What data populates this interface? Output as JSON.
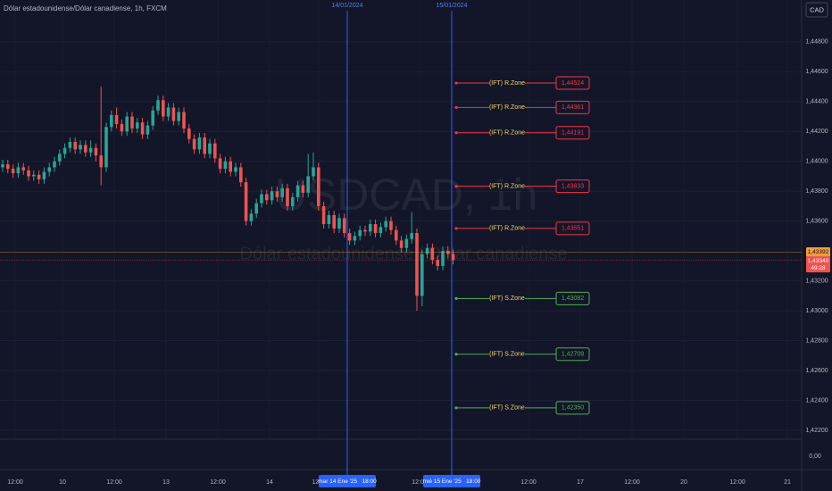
{
  "chart_data": {
    "type": "candlestick",
    "title": "Dólar estadounidense/Dólar canadiense, 1h, FXCM",
    "watermark": "USDCAD, 1h",
    "watermark_subtitle": "Dólar estadounidense / Dólar canadiense",
    "currency_button": "CAD",
    "up_color": "#26a69a",
    "down_color": "#ef5350",
    "ylim": [
      1.4214,
      1.4508
    ],
    "yticks": [
      {
        "value": 1.448,
        "label": "1,44800"
      },
      {
        "value": 1.446,
        "label": "1,44600"
      },
      {
        "value": 1.444,
        "label": "1,44400"
      },
      {
        "value": 1.442,
        "label": "1,44200"
      },
      {
        "value": 1.44,
        "label": "1,44000"
      },
      {
        "value": 1.438,
        "label": "1,43800"
      },
      {
        "value": 1.436,
        "label": "1,43600"
      },
      {
        "value": 1.432,
        "label": "1,43200"
      },
      {
        "value": 1.43,
        "label": "1,43000"
      },
      {
        "value": 1.428,
        "label": "1,42800"
      },
      {
        "value": 1.426,
        "label": "1,42600"
      },
      {
        "value": 1.424,
        "label": "1,42400"
      },
      {
        "value": 1.422,
        "label": "1,42200"
      }
    ],
    "lower_pane_tick": {
      "value": 0,
      "label": "0,00"
    },
    "x_axis_labels": [
      "12:00",
      "10",
      "12:00",
      "13",
      "12:00",
      "14",
      "12:00",
      "12:00",
      "12:00",
      "17",
      "12:00",
      "20",
      "12:00",
      "21"
    ],
    "markers": [
      {
        "top_label": "14/01/2024",
        "axis_label": "mar 14 Ene '25   18:00"
      },
      {
        "top_label": "15/01/2024",
        "axis_label": "mié 15 Ene '25   18:00"
      }
    ],
    "open": [
      1.4396,
      1.4398,
      1.4395,
      1.4392,
      1.4396,
      1.4394,
      1.439,
      1.4391,
      1.4388,
      1.4393,
      1.4396,
      1.44,
      1.4405,
      1.4409,
      1.4413,
      1.4408,
      1.4411,
      1.4406,
      1.4409,
      1.4404,
      1.4396,
      1.4423,
      1.4431,
      1.4425,
      1.442,
      1.443,
      1.4422,
      1.4426,
      1.4418,
      1.4424,
      1.4434,
      1.4441,
      1.443,
      1.4436,
      1.4427,
      1.4433,
      1.4422,
      1.4415,
      1.4408,
      1.4416,
      1.4405,
      1.4412,
      1.4402,
      1.4395,
      1.44,
      1.4393,
      1.4396,
      1.4386,
      1.436,
      1.4365,
      1.4372,
      1.4378,
      1.4374,
      1.438,
      1.4376,
      1.4382,
      1.437,
      1.4376,
      1.4384,
      1.4379,
      1.439,
      1.4396,
      1.437,
      1.4358,
      1.4364,
      1.4355,
      1.4362,
      1.4352,
      1.4347,
      1.435,
      1.4354,
      1.4353,
      1.4358,
      1.4352,
      1.4356,
      1.436,
      1.4354,
      1.4347,
      1.4342,
      1.4348,
      1.4352,
      1.431,
      1.4338,
      1.4342,
      1.4334,
      1.433,
      1.434,
      1.4338
    ],
    "high": [
      1.4401,
      1.4401,
      1.4398,
      1.4399,
      1.4399,
      1.4397,
      1.4394,
      1.4394,
      1.4396,
      1.4399,
      1.4403,
      1.4408,
      1.4412,
      1.4416,
      1.4416,
      1.4414,
      1.4414,
      1.4414,
      1.4412,
      1.445,
      1.4426,
      1.4434,
      1.4436,
      1.4428,
      1.4433,
      1.4433,
      1.4429,
      1.4429,
      1.4427,
      1.4437,
      1.4444,
      1.4444,
      1.4439,
      1.4439,
      1.4436,
      1.4436,
      1.4425,
      1.4418,
      1.4419,
      1.4419,
      1.4415,
      1.4415,
      1.4405,
      1.4403,
      1.4403,
      1.4399,
      1.4399,
      1.4389,
      1.4368,
      1.4375,
      1.4381,
      1.4381,
      1.4383,
      1.4383,
      1.4385,
      1.4385,
      1.4379,
      1.4387,
      1.4387,
      1.4405,
      1.4406,
      1.4399,
      1.4373,
      1.4367,
      1.4367,
      1.4365,
      1.4365,
      1.4355,
      1.4353,
      1.4357,
      1.4357,
      1.4361,
      1.4361,
      1.4359,
      1.4363,
      1.4363,
      1.4357,
      1.435,
      1.4351,
      1.4366,
      1.4355,
      1.4341,
      1.4345,
      1.4345,
      1.4337,
      1.4343,
      1.4343,
      1.4341
    ],
    "low": [
      1.4393,
      1.4392,
      1.4389,
      1.4389,
      1.4391,
      1.4387,
      1.4387,
      1.4385,
      1.4385,
      1.439,
      1.4393,
      1.4397,
      1.4402,
      1.4406,
      1.4405,
      1.4405,
      1.4403,
      1.4403,
      1.44,
      1.4384,
      1.4393,
      1.442,
      1.4422,
      1.4417,
      1.4417,
      1.4419,
      1.4419,
      1.4415,
      1.4415,
      1.4421,
      1.4431,
      1.4427,
      1.4427,
      1.4424,
      1.4424,
      1.4419,
      1.4412,
      1.4405,
      1.4405,
      1.4402,
      1.4402,
      1.4399,
      1.4392,
      1.4392,
      1.439,
      1.439,
      1.4383,
      1.4357,
      1.4357,
      1.4362,
      1.4369,
      1.4371,
      1.4371,
      1.4373,
      1.4373,
      1.4367,
      1.4367,
      1.4373,
      1.4376,
      1.4376,
      1.4387,
      1.4367,
      1.4355,
      1.4355,
      1.4352,
      1.4352,
      1.4349,
      1.4344,
      1.4344,
      1.4347,
      1.435,
      1.435,
      1.4349,
      1.4349,
      1.4353,
      1.4351,
      1.4344,
      1.4339,
      1.4339,
      1.4345,
      1.43,
      1.4303,
      1.4335,
      1.4331,
      1.4327,
      1.4327,
      1.4335,
      1.4331
    ],
    "close": [
      1.4398,
      1.4395,
      1.4392,
      1.4396,
      1.4394,
      1.439,
      1.4391,
      1.4388,
      1.4393,
      1.4396,
      1.44,
      1.4405,
      1.4409,
      1.4413,
      1.4408,
      1.4411,
      1.4406,
      1.4409,
      1.4404,
      1.4396,
      1.4423,
      1.4431,
      1.4425,
      1.442,
      1.443,
      1.4422,
      1.4426,
      1.4418,
      1.4424,
      1.4434,
      1.4441,
      1.443,
      1.4436,
      1.4427,
      1.4433,
      1.4422,
      1.4415,
      1.4408,
      1.4416,
      1.4405,
      1.4412,
      1.4402,
      1.4395,
      1.44,
      1.4393,
      1.4396,
      1.4386,
      1.436,
      1.4365,
      1.4372,
      1.4378,
      1.4374,
      1.438,
      1.4376,
      1.4382,
      1.437,
      1.4376,
      1.4384,
      1.4379,
      1.439,
      1.4396,
      1.437,
      1.4358,
      1.4364,
      1.4355,
      1.4362,
      1.4352,
      1.4347,
      1.435,
      1.4354,
      1.4353,
      1.4358,
      1.4352,
      1.4356,
      1.436,
      1.4354,
      1.4347,
      1.4342,
      1.4348,
      1.4352,
      1.431,
      1.4338,
      1.4342,
      1.4334,
      1.433,
      1.434,
      1.4338,
      1.4334
    ],
    "zones": [
      {
        "name": "(IFT) R.Zone",
        "value": 1.44524,
        "value_label": "1,44524",
        "color": "#f23645"
      },
      {
        "name": "(IFT) R.Zone",
        "value": 1.44361,
        "value_label": "1,44361",
        "color": "#f23645"
      },
      {
        "name": "(IFT) R.Zone",
        "value": 1.44191,
        "value_label": "1,44191",
        "color": "#f23645"
      },
      {
        "name": "(IFT) R.Zone",
        "value": 1.43833,
        "value_label": "1,43833",
        "color": "#f23645"
      },
      {
        "name": "(IFT) R.Zone",
        "value": 1.43551,
        "value_label": "1,43551",
        "color": "#f23645"
      },
      {
        "name": "(IFT) S.Zone",
        "value": 1.43082,
        "value_label": "1,43082",
        "color": "#4caf50"
      },
      {
        "name": "(IFT) S.Zone",
        "value": 1.42709,
        "value_label": "1,42709",
        "color": "#4caf50"
      },
      {
        "name": "(IFT) S.Zone",
        "value": 1.4235,
        "value_label": "1,42350",
        "color": "#4caf50"
      }
    ],
    "zone_label_color": "#f7d46b",
    "last_price": {
      "value": 1.43392,
      "label": "1,43392",
      "color": "#f59b3a"
    },
    "current_price": {
      "value": 1.4334,
      "label": "1,43340",
      "countdown": "49:28",
      "color": "#ef5350"
    }
  }
}
